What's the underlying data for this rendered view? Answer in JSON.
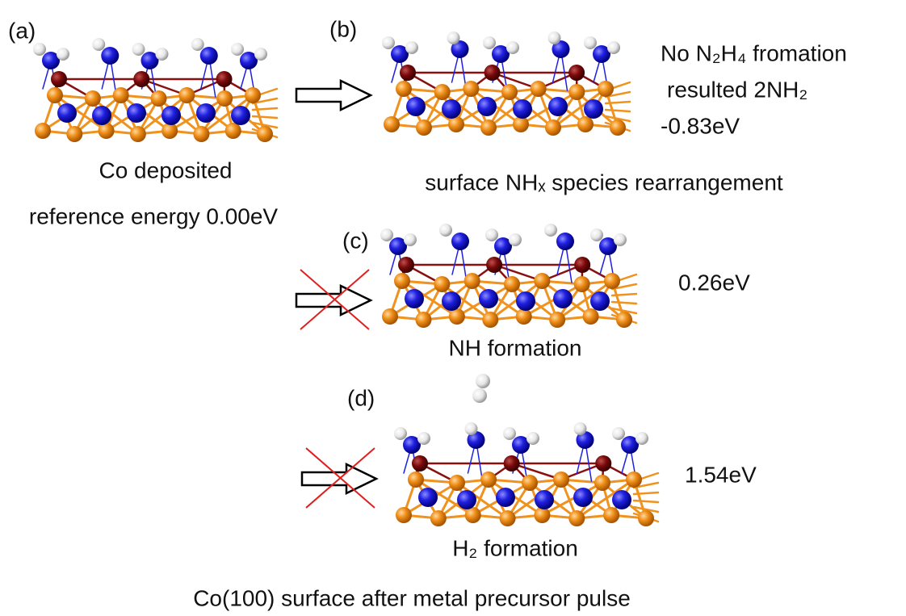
{
  "panels": [
    {
      "label": "(a)",
      "caption": "Co deposited",
      "note": "reference energy 0.00eV"
    },
    {
      "label": "(b)",
      "notes": [
        "No N₂H₄ fromation",
        "resulted 2NH₂",
        "-0.83eV"
      ],
      "caption": "surface NHₓ species rearrangement"
    },
    {
      "label": "(c)",
      "energy": "0.26eV",
      "caption": "NH formation"
    },
    {
      "label": "(d)",
      "energy": "1.54eV",
      "caption": "H₂ formation"
    }
  ],
  "footer": "Co(100) surface after metal precursor pulse"
}
